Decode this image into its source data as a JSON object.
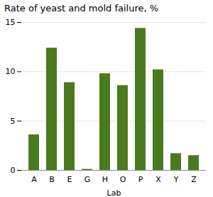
{
  "chart_data": {
    "type": "bar",
    "title": "Rate of yeast and mold failure, %",
    "xlabel": "Lab",
    "categories": [
      "A",
      "B",
      "E",
      "G",
      "H",
      "O",
      "P",
      "X",
      "Y",
      "Z"
    ],
    "values": [
      3.6,
      12.4,
      8.9,
      0.1,
      9.8,
      8.6,
      14.4,
      10.2,
      1.7,
      1.5
    ],
    "color": "#4a7a1e",
    "ylim": [
      0,
      15
    ],
    "yticks": [
      0,
      5,
      10,
      15
    ],
    "grid": true
  }
}
